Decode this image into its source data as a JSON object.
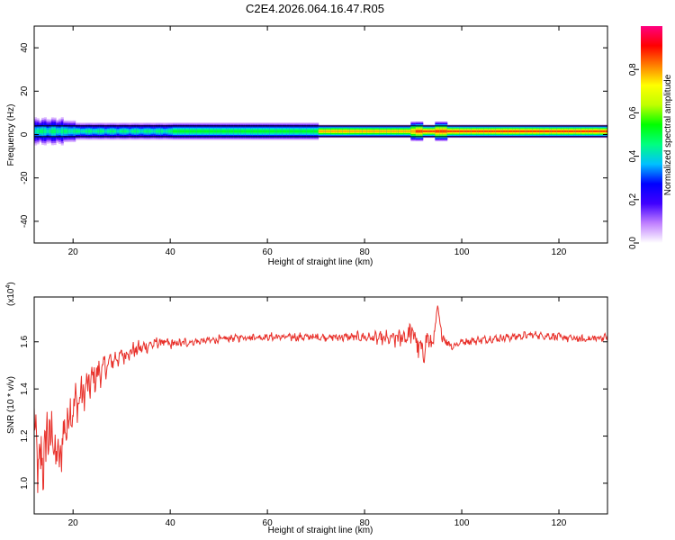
{
  "title": "C2E4.2026.064.16.47.R05",
  "chart_data": [
    {
      "type": "heatmap",
      "xlabel": "Height of straight line (km)",
      "ylabel": "Frequency (Hz)",
      "xlim": [
        12,
        130
      ],
      "ylim": [
        -50,
        50
      ],
      "xticks": [
        20,
        40,
        60,
        80,
        100,
        120
      ],
      "yticks": [
        -40,
        -20,
        0,
        20,
        40
      ],
      "colorbar": {
        "label": "Normalized spectral amplitude",
        "range": [
          0,
          1
        ],
        "ticks": [
          "0.0",
          "0.2",
          "0.4",
          "0.6",
          "0.8"
        ],
        "tick_values": [
          0.0,
          0.2,
          0.4,
          0.6,
          0.8
        ],
        "colors": [
          "#ffffff",
          "#c080ff",
          "#4000ff",
          "#0000ff",
          "#00c0ff",
          "#00ff80",
          "#00ff00",
          "#c0ff00",
          "#ffff00",
          "#ff8000",
          "#ff0000",
          "#ff0080"
        ]
      },
      "horizontal_lines_hz": [
        -1,
        4
      ],
      "band": {
        "center_hz": 1.5,
        "segments": [
          {
            "x": [
              12,
              20
            ],
            "halfwidth_hz": 5,
            "peak": 0.55
          },
          {
            "x": [
              20,
              40
            ],
            "halfwidth_hz": 4,
            "peak": 0.55
          },
          {
            "x": [
              40,
              70
            ],
            "halfwidth_hz": 4,
            "peak": 0.6
          },
          {
            "x": [
              70,
              90
            ],
            "halfwidth_hz": 3,
            "peak": 0.9
          },
          {
            "x": [
              90,
              130
            ],
            "halfwidth_hz": 3,
            "peak": 1.0
          }
        ]
      }
    },
    {
      "type": "line",
      "xlabel": "Height of straight line (km)",
      "ylabel": "SNR (10 * v/v)",
      "scale_label": "(x10",
      "scale_exp": "4",
      "scale_close": ")",
      "xlim": [
        12,
        130
      ],
      "ylim": [
        0.87,
        1.79
      ],
      "xticks": [
        20,
        40,
        60,
        80,
        100,
        120
      ],
      "yticks": [
        1.0,
        1.2,
        1.4,
        1.6
      ],
      "ytick_labels": [
        "1.0",
        "1.2",
        "1.4",
        "1.6"
      ],
      "series_color": "#e8302a",
      "series": [
        {
          "x": [
            12,
            13,
            14,
            15,
            16,
            17,
            18,
            19,
            20,
            22,
            24,
            26,
            28,
            30,
            32,
            35,
            38,
            40,
            45,
            50,
            55,
            60,
            65,
            70,
            75,
            80,
            85,
            88,
            90,
            91,
            92,
            93,
            94,
            95,
            96,
            97,
            98,
            100,
            105,
            110,
            115,
            120,
            125,
            130
          ],
          "y": [
            1.25,
            1.05,
            1.12,
            1.22,
            1.18,
            1.08,
            1.2,
            1.28,
            1.32,
            1.38,
            1.44,
            1.48,
            1.52,
            1.54,
            1.56,
            1.58,
            1.6,
            1.59,
            1.6,
            1.61,
            1.62,
            1.62,
            1.62,
            1.62,
            1.62,
            1.62,
            1.61,
            1.62,
            1.64,
            1.58,
            1.55,
            1.62,
            1.58,
            1.74,
            1.62,
            1.6,
            1.58,
            1.6,
            1.61,
            1.62,
            1.63,
            1.62,
            1.61,
            1.62
          ],
          "noise": [
            0.1,
            0.14,
            0.14,
            0.12,
            0.12,
            0.1,
            0.1,
            0.09,
            0.08,
            0.07,
            0.06,
            0.05,
            0.04,
            0.035,
            0.03,
            0.025,
            0.02,
            0.02,
            0.015,
            0.015,
            0.015,
            0.015,
            0.015,
            0.015,
            0.015,
            0.02,
            0.03,
            0.04,
            0.05,
            0.05,
            0.05,
            0.04,
            0.04,
            0.02,
            0.02,
            0.02,
            0.015,
            0.015,
            0.015,
            0.015,
            0.015,
            0.015,
            0.015,
            0.015
          ]
        }
      ]
    }
  ]
}
